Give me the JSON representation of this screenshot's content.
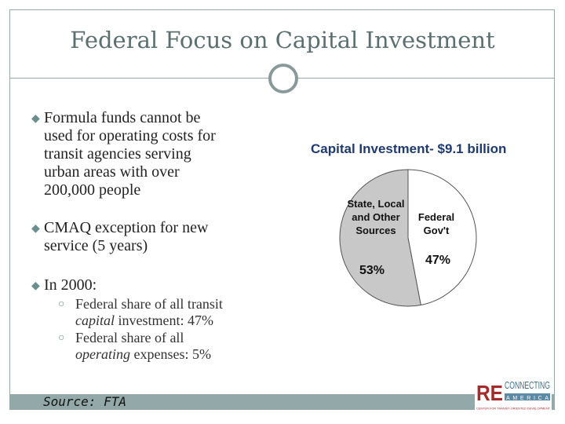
{
  "title": "Federal Focus on Capital Investment",
  "bullets": [
    {
      "lines": [
        "Formula funds cannot be",
        "used for operating costs for",
        "transit agencies serving",
        "urban areas with over",
        "200,000 people"
      ]
    },
    {
      "lines": [
        "CMAQ exception for new",
        "service (5 years)"
      ]
    },
    {
      "lines": [
        "In 2000:"
      ]
    }
  ],
  "sub_bullets": [
    {
      "a": "Federal share of all transit",
      "b_em": "capital",
      "b_rest": " investment: 47%"
    },
    {
      "a": "Federal share of all",
      "b_em": "operating",
      "b_rest": " expenses: 5%"
    }
  ],
  "source": "Source: FTA",
  "chart_data": {
    "type": "pie",
    "title": "Capital Investment- $9.1 billion",
    "slices": [
      {
        "label": "Federal Gov't",
        "value": 47,
        "value_label": "47%",
        "color": "#ffffff"
      },
      {
        "label": "State, Local and Other Sources",
        "value": 53,
        "value_label": "53%",
        "color": "#c8c8c8"
      }
    ]
  },
  "logo": {
    "re": "RE",
    "connecting": "CONNECTING",
    "america": "AMERICA",
    "tagline": "CENTER FOR TRANSIT-ORIENTED DEVELOPMENT"
  }
}
